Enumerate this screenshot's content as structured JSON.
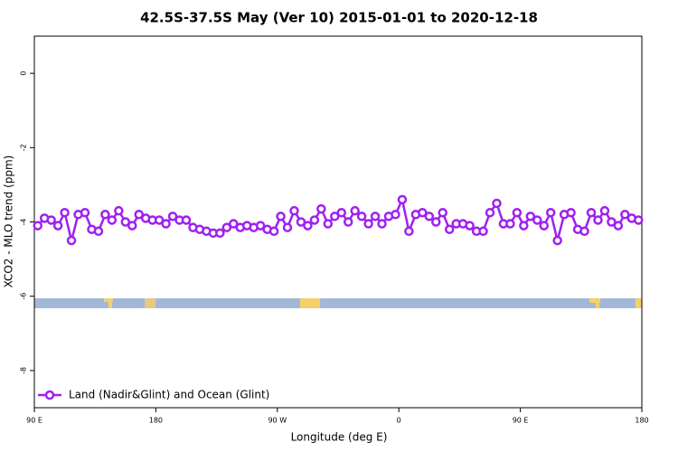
{
  "chart_data": {
    "type": "line",
    "title": "42.5S-37.5S May (Ver 10)   2015-01-01 to 2020-12-18",
    "x_label": "Longitude (deg E)",
    "y_label": "XCO2 - MLO trend (ppm)",
    "xlim": [
      90,
      540
    ],
    "xticks": [
      {
        "value": 90,
        "label": "90 E"
      },
      {
        "value": 180,
        "label": "180"
      },
      {
        "value": 270,
        "label": "90 W"
      },
      {
        "value": 360,
        "label": "0"
      },
      {
        "value": 450,
        "label": "90 E"
      },
      {
        "value": 540,
        "label": "180"
      }
    ],
    "ylim": [
      -9,
      1
    ],
    "yticks": [
      -8,
      -6,
      -4,
      -2,
      0
    ],
    "legend": "bottom-left",
    "x": [
      92.5,
      97.5,
      102.5,
      107.5,
      112.5,
      117.5,
      122.5,
      127.5,
      132.5,
      137.5,
      142.5,
      147.5,
      152.5,
      157.5,
      162.5,
      167.5,
      172.5,
      177.5,
      182.5,
      187.5,
      192.5,
      197.5,
      202.5,
      207.5,
      212.5,
      217.5,
      222.5,
      227.5,
      232.5,
      237.5,
      242.5,
      247.5,
      252.5,
      257.5,
      262.5,
      267.5,
      272.5,
      277.5,
      282.5,
      287.5,
      292.5,
      297.5,
      302.5,
      307.5,
      312.5,
      317.5,
      322.5,
      327.5,
      332.5,
      337.5,
      342.5,
      347.5,
      352.5,
      357.5,
      362.5,
      367.5,
      372.5,
      377.5,
      382.5,
      387.5,
      392.5,
      397.5,
      402.5,
      407.5,
      412.5,
      417.5,
      422.5,
      427.5,
      432.5,
      437.5,
      442.5,
      447.5,
      452.5,
      457.5,
      462.5,
      467.5,
      472.5,
      477.5,
      482.5,
      487.5,
      492.5,
      497.5,
      502.5,
      507.5,
      512.5,
      517.5,
      522.5,
      527.5,
      532.5,
      537.5
    ],
    "series": [
      {
        "name": "Land (Nadir&Glint) and Ocean (Glint)",
        "color": "#a020f0",
        "values": [
          -4.1,
          -3.9,
          -3.95,
          -4.1,
          -3.75,
          -4.5,
          -3.8,
          -3.75,
          -4.2,
          -4.25,
          -3.8,
          -3.95,
          -3.7,
          -4.0,
          -4.1,
          -3.8,
          -3.9,
          -3.95,
          -3.95,
          -4.05,
          -3.85,
          -3.95,
          -3.95,
          -4.15,
          -4.2,
          -4.25,
          -4.3,
          -4.3,
          -4.15,
          -4.05,
          -4.15,
          -4.1,
          -4.15,
          -4.1,
          -4.2,
          -4.25,
          -3.85,
          -4.15,
          -3.7,
          -4.0,
          -4.1,
          -3.95,
          -3.65,
          -4.05,
          -3.85,
          -3.75,
          -4.0,
          -3.7,
          -3.85,
          -4.05,
          -3.85,
          -4.05,
          -3.85,
          -3.8,
          -3.4,
          -4.25,
          -3.8,
          -3.75,
          -3.85,
          -4.0,
          -3.75,
          -4.2,
          -4.05,
          -4.05,
          -4.1,
          -4.25,
          -4.25,
          -3.75,
          -3.5,
          -4.05,
          -4.05,
          -3.75,
          -4.1,
          -3.85,
          -3.95,
          -4.1,
          -3.75,
          -4.5,
          -3.8,
          -3.75,
          -4.2,
          -4.25,
          -3.75,
          -3.95,
          -3.7,
          -4.0,
          -4.1,
          -3.8,
          -3.9,
          -3.95
        ]
      }
    ]
  }
}
